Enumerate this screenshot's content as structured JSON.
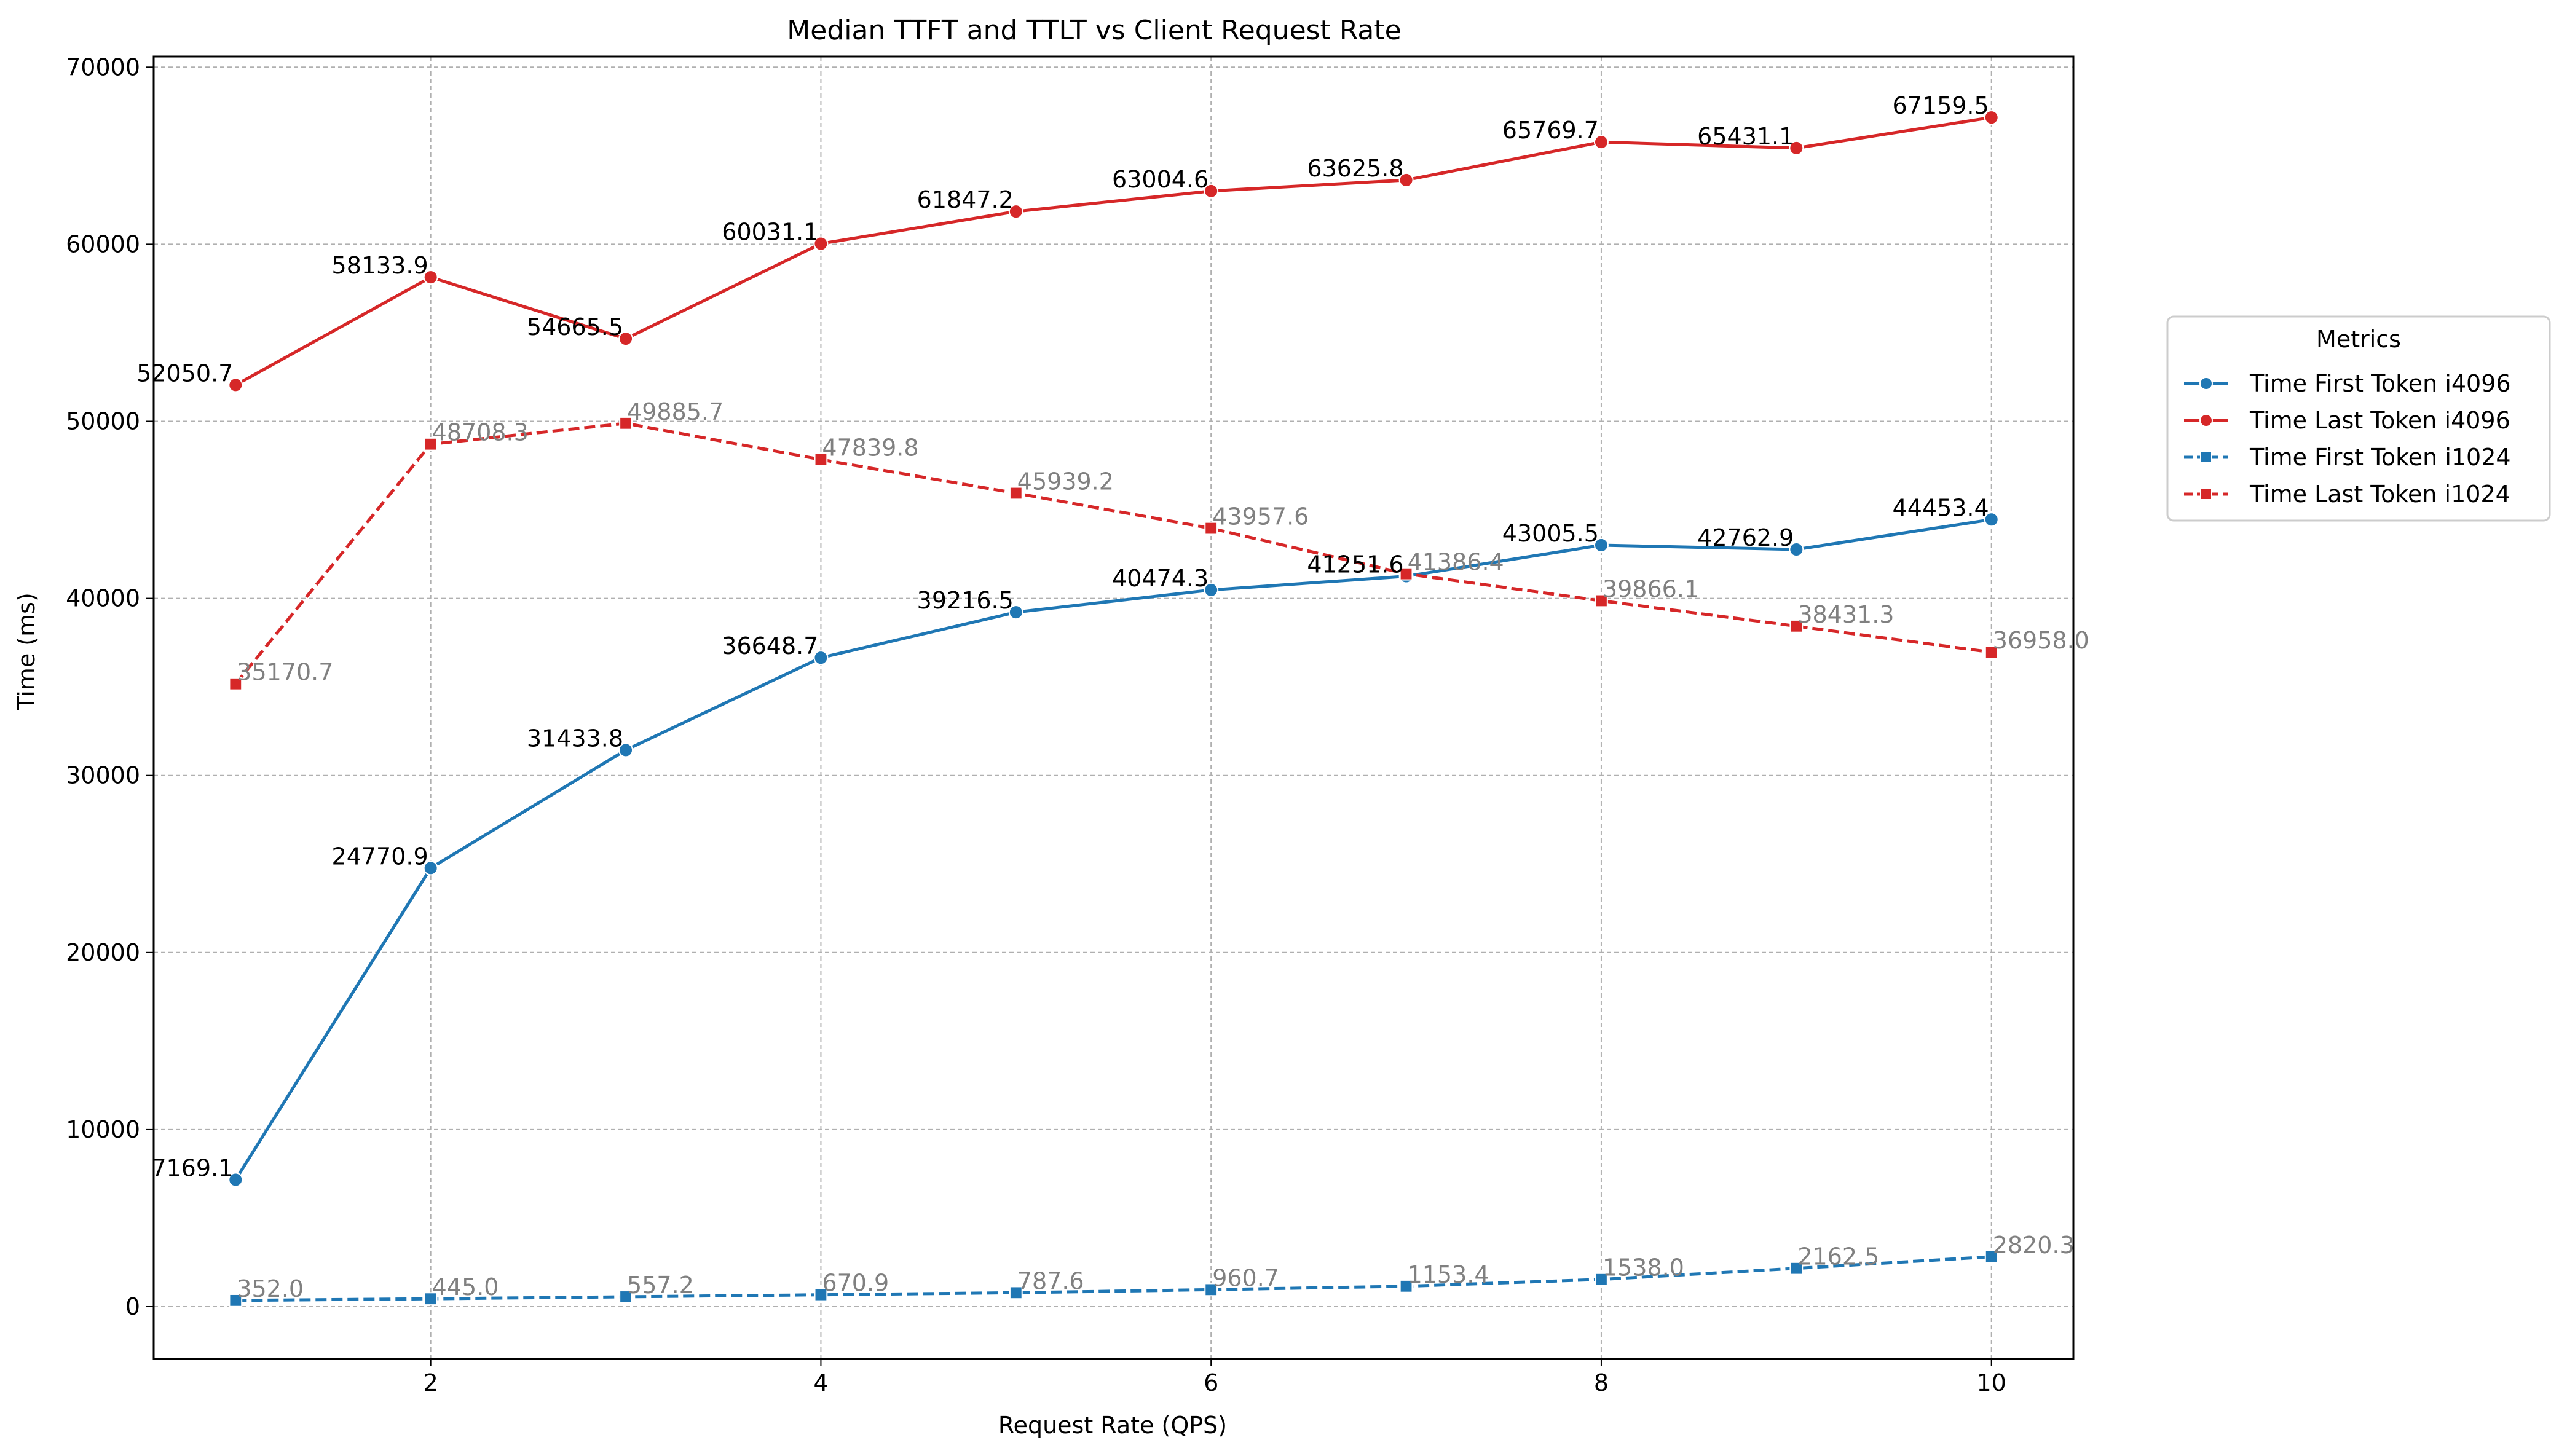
{
  "chart_data": {
    "type": "line",
    "title": "Median TTFT and TTLT vs Client Request Rate",
    "xlabel": "Request Rate (QPS)",
    "ylabel": "Time (ms)",
    "xlim": [
      0.58,
      10.42
    ],
    "ylim": [
      -2950,
      70600
    ],
    "x_ticks": [
      2,
      4,
      6,
      8,
      10
    ],
    "x_tick_labels": [
      "2",
      "4",
      "6",
      "8",
      "10"
    ],
    "y_ticks": [
      0,
      10000,
      20000,
      30000,
      40000,
      50000,
      60000,
      70000
    ],
    "y_tick_labels": [
      "0",
      "10000",
      "20000",
      "30000",
      "40000",
      "50000",
      "60000",
      "70000"
    ],
    "grid": true,
    "legend": {
      "title": "Metrics",
      "placement": "right-outside"
    },
    "x": [
      1,
      2,
      3,
      4,
      5,
      6,
      7,
      8,
      9,
      10
    ],
    "series": [
      {
        "name": "Time First Token i4096",
        "color": "#1f77b4",
        "marker": "circle",
        "linestyle": "solid",
        "label_color": "#000000",
        "values": [
          7169.1,
          24770.9,
          31433.8,
          36648.7,
          39216.5,
          40474.3,
          41251.6,
          43005.5,
          42762.9,
          44453.4
        ],
        "labels": [
          "7169.1",
          "24770.9",
          "31433.8",
          "36648.7",
          "39216.5",
          "40474.3",
          "41251.6",
          "43005.5",
          "42762.9",
          "44453.4"
        ]
      },
      {
        "name": "Time Last Token i4096",
        "color": "#d62728",
        "marker": "circle",
        "linestyle": "solid",
        "label_color": "#000000",
        "values": [
          52050.7,
          58133.9,
          54665.5,
          60031.1,
          61847.2,
          63004.6,
          63625.8,
          65769.7,
          65431.1,
          67159.5
        ],
        "labels": [
          "52050.7",
          "58133.9",
          "54665.5",
          "60031.1",
          "61847.2",
          "63004.6",
          "63625.8",
          "65769.7",
          "65431.1",
          "67159.5"
        ]
      },
      {
        "name": "Time First Token i1024",
        "color": "#1f77b4",
        "marker": "square",
        "linestyle": "dashed",
        "label_color": "#808080",
        "values": [
          352.0,
          445.0,
          557.2,
          670.9,
          787.6,
          960.7,
          1153.4,
          1538.0,
          2162.5,
          2820.3
        ],
        "labels": [
          "352.0",
          "445.0",
          "557.2",
          "670.9",
          "787.6",
          "960.7",
          "1153.4",
          "1538.0",
          "2162.5",
          "2820.3"
        ]
      },
      {
        "name": "Time Last Token i1024",
        "color": "#d62728",
        "marker": "square",
        "linestyle": "dashed",
        "label_color": "#808080",
        "values": [
          35170.7,
          48708.3,
          49885.7,
          47839.8,
          45939.2,
          43957.6,
          41386.4,
          39866.1,
          38431.3,
          36958.0
        ],
        "labels": [
          "35170.7",
          "48708.3",
          "49885.7",
          "47839.8",
          "45939.2",
          "43957.6",
          "41386.4",
          "39866.1",
          "38431.3",
          "36958.0"
        ]
      }
    ]
  }
}
